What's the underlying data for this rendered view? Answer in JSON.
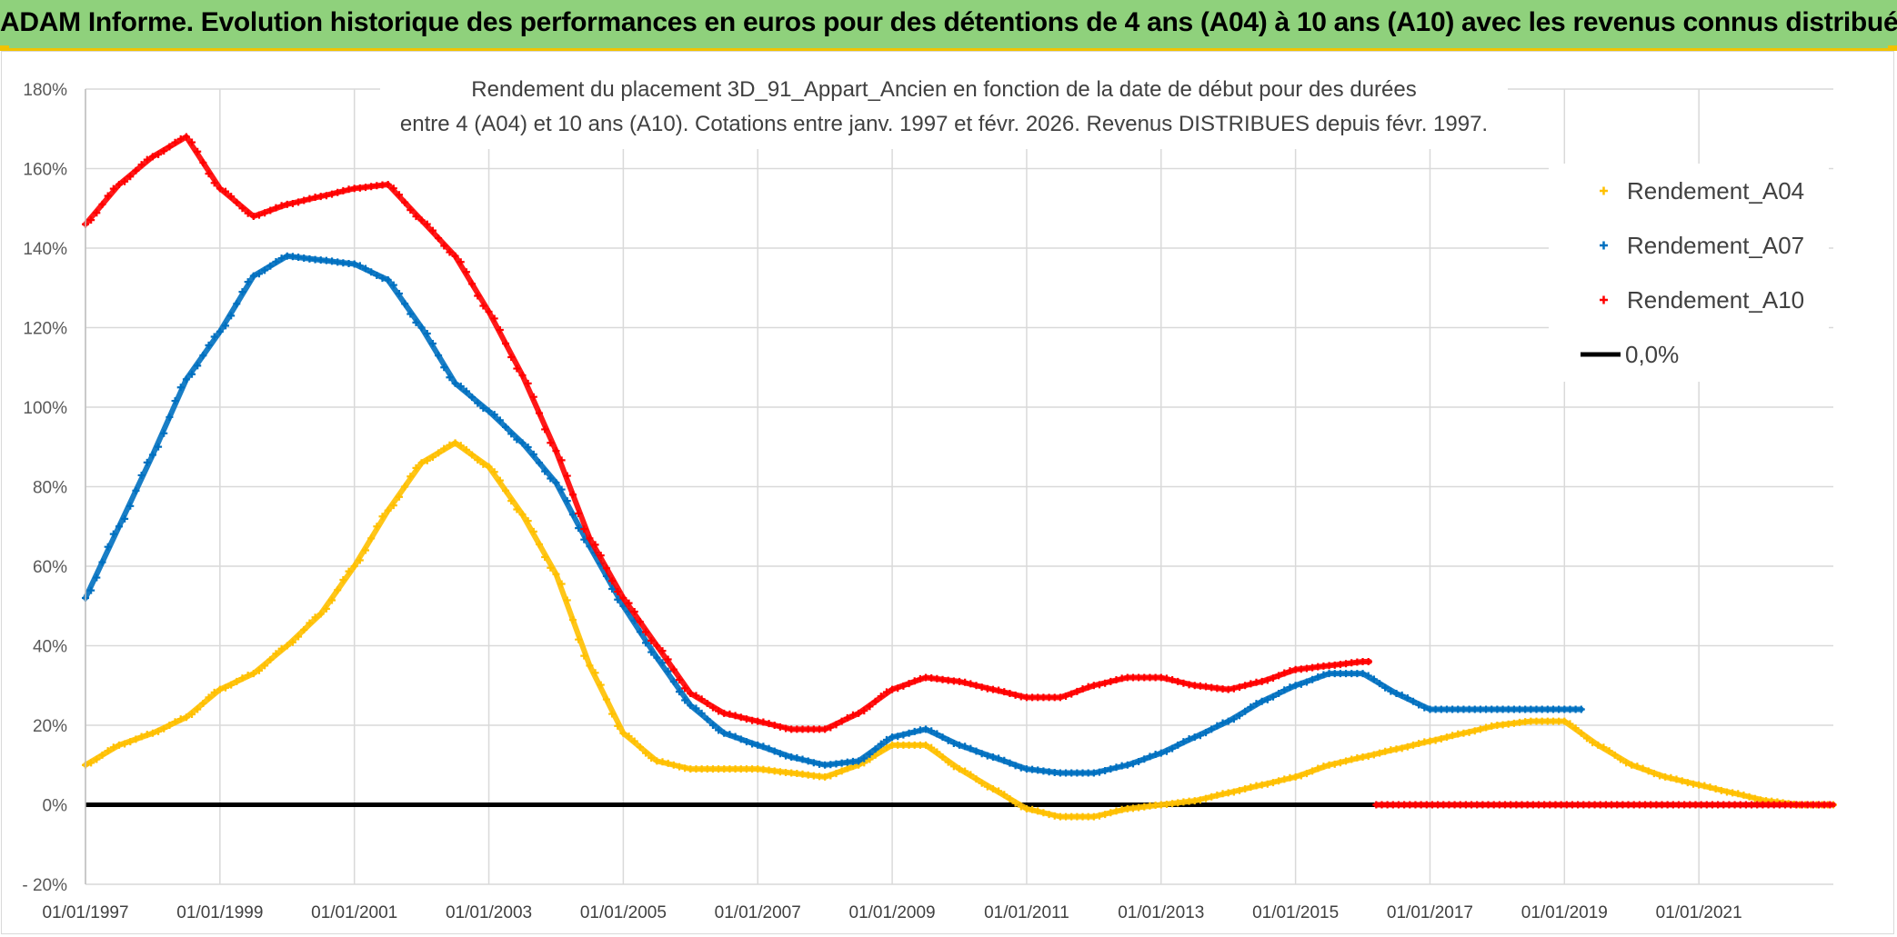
{
  "banner": {
    "title": "ADAM Informe. Evolution historique des performances en euros pour des détentions de 4 ans (A04) à 10 ans (A10) avec les revenus connus distribués"
  },
  "colors": {
    "banner_bg": "#8fd17c",
    "banner_border": "#f2c200",
    "A04": "#ffc000",
    "A07": "#0070c0",
    "A10": "#ff0000",
    "zero": "#000000",
    "grid": "#d9d9d9"
  },
  "chart_data": {
    "type": "scatter",
    "title_lines": [
      "Rendement du placement 3D_91_Appart_Ancien en fonction de la date de début pour des durées",
      "entre 4 (A04) et 10 ans (A10). Cotations entre janv. 1997 et févr. 2026. Revenus DISTRIBUES depuis févr. 1997."
    ],
    "xlabel": "",
    "ylabel": "",
    "x_unit": "year",
    "xlim": [
      1997.0,
      2023.0
    ],
    "ylim": [
      -20,
      180
    ],
    "y_ticks": [
      -20,
      0,
      20,
      40,
      60,
      80,
      100,
      120,
      140,
      160,
      180
    ],
    "y_tick_labels": [
      "- 20%",
      "0%",
      "20%",
      "40%",
      "60%",
      "80%",
      "100%",
      "120%",
      "140%",
      "160%",
      "180%"
    ],
    "x_ticks": [
      1997,
      1999,
      2001,
      2003,
      2005,
      2007,
      2009,
      2011,
      2013,
      2015,
      2017,
      2019,
      2021
    ],
    "x_tick_labels": [
      "01/01/1997",
      "01/01/1999",
      "01/01/2001",
      "01/01/2003",
      "01/01/2005",
      "01/01/2007",
      "01/01/2009",
      "01/01/2011",
      "01/01/2013",
      "01/01/2015",
      "01/01/2017",
      "01/01/2019",
      "01/01/2021"
    ],
    "grid": true,
    "legend_position": "right",
    "legend": [
      {
        "key": "A04",
        "label": "Rendement_A04",
        "marker": "+"
      },
      {
        "key": "A07",
        "label": "Rendement_A07",
        "marker": "+"
      },
      {
        "key": "A10",
        "label": "Rendement_A10",
        "marker": "+"
      },
      {
        "key": "zero",
        "label": "0,0%",
        "marker": "line"
      }
    ],
    "series": [
      {
        "name": "Rendement_A04",
        "key": "A04",
        "points": [
          [
            1997.0,
            10
          ],
          [
            1997.5,
            15
          ],
          [
            1998.0,
            18
          ],
          [
            1998.5,
            22
          ],
          [
            1999.0,
            29
          ],
          [
            1999.5,
            33
          ],
          [
            2000.0,
            40
          ],
          [
            2000.5,
            48
          ],
          [
            2001.0,
            60
          ],
          [
            2001.5,
            74
          ],
          [
            2002.0,
            86
          ],
          [
            2002.5,
            91
          ],
          [
            2003.0,
            85
          ],
          [
            2003.5,
            73
          ],
          [
            2004.0,
            58
          ],
          [
            2004.5,
            35
          ],
          [
            2005.0,
            18
          ],
          [
            2005.5,
            11
          ],
          [
            2006.0,
            9
          ],
          [
            2006.5,
            9
          ],
          [
            2007.0,
            9
          ],
          [
            2007.5,
            8
          ],
          [
            2008.0,
            7
          ],
          [
            2008.5,
            10
          ],
          [
            2009.0,
            15
          ],
          [
            2009.5,
            15
          ],
          [
            2010.0,
            9
          ],
          [
            2010.5,
            4
          ],
          [
            2011.0,
            -1
          ],
          [
            2011.5,
            -3
          ],
          [
            2012.0,
            -3
          ],
          [
            2012.5,
            -1
          ],
          [
            2013.0,
            0
          ],
          [
            2013.5,
            1
          ],
          [
            2014.0,
            3
          ],
          [
            2014.5,
            5
          ],
          [
            2015.0,
            7
          ],
          [
            2015.5,
            10
          ],
          [
            2016.0,
            12
          ],
          [
            2016.5,
            14
          ],
          [
            2017.0,
            16
          ],
          [
            2017.5,
            18
          ],
          [
            2018.0,
            20
          ],
          [
            2018.5,
            21
          ],
          [
            2019.0,
            21
          ],
          [
            2019.5,
            15
          ],
          [
            2020.0,
            10
          ],
          [
            2020.5,
            7
          ],
          [
            2021.0,
            5
          ],
          [
            2021.5,
            3
          ],
          [
            2022.0,
            1
          ],
          [
            2022.5,
            0
          ],
          [
            2023.0,
            0
          ]
        ]
      },
      {
        "name": "Rendement_A07",
        "key": "A07",
        "points": [
          [
            1997.0,
            52
          ],
          [
            1997.5,
            70
          ],
          [
            1998.0,
            88
          ],
          [
            1998.5,
            107
          ],
          [
            1999.0,
            119
          ],
          [
            1999.5,
            133
          ],
          [
            2000.0,
            138
          ],
          [
            2000.5,
            137
          ],
          [
            2001.0,
            136
          ],
          [
            2001.5,
            132
          ],
          [
            2002.0,
            120
          ],
          [
            2002.5,
            106
          ],
          [
            2003.0,
            99
          ],
          [
            2003.5,
            91
          ],
          [
            2004.0,
            81
          ],
          [
            2004.5,
            65
          ],
          [
            2005.0,
            50
          ],
          [
            2005.5,
            37
          ],
          [
            2006.0,
            25
          ],
          [
            2006.5,
            18
          ],
          [
            2007.0,
            15
          ],
          [
            2007.5,
            12
          ],
          [
            2008.0,
            10
          ],
          [
            2008.5,
            11
          ],
          [
            2009.0,
            17
          ],
          [
            2009.5,
            19
          ],
          [
            2010.0,
            15
          ],
          [
            2010.5,
            12
          ],
          [
            2011.0,
            9
          ],
          [
            2011.5,
            8
          ],
          [
            2012.0,
            8
          ],
          [
            2012.5,
            10
          ],
          [
            2013.0,
            13
          ],
          [
            2013.5,
            17
          ],
          [
            2014.0,
            21
          ],
          [
            2014.5,
            26
          ],
          [
            2015.0,
            30
          ],
          [
            2015.5,
            33
          ],
          [
            2016.0,
            33
          ],
          [
            2016.5,
            28
          ],
          [
            2017.0,
            24
          ],
          [
            2017.5,
            24
          ],
          [
            2018.0,
            24
          ],
          [
            2018.5,
            24
          ],
          [
            2019.0,
            24
          ],
          [
            2019.25,
            24
          ]
        ]
      },
      {
        "name": "Rendement_A10",
        "key": "A10",
        "points": [
          [
            1997.0,
            146
          ],
          [
            1997.5,
            156
          ],
          [
            1998.0,
            163
          ],
          [
            1998.5,
            168
          ],
          [
            1999.0,
            155
          ],
          [
            1999.5,
            148
          ],
          [
            2000.0,
            151
          ],
          [
            2000.5,
            153
          ],
          [
            2001.0,
            155
          ],
          [
            2001.5,
            156
          ],
          [
            2002.0,
            147
          ],
          [
            2002.5,
            138
          ],
          [
            2003.0,
            124
          ],
          [
            2003.5,
            108
          ],
          [
            2004.0,
            89
          ],
          [
            2004.5,
            67
          ],
          [
            2005.0,
            52
          ],
          [
            2005.5,
            40
          ],
          [
            2006.0,
            28
          ],
          [
            2006.5,
            23
          ],
          [
            2007.0,
            21
          ],
          [
            2007.5,
            19
          ],
          [
            2008.0,
            19
          ],
          [
            2008.5,
            23
          ],
          [
            2009.0,
            29
          ],
          [
            2009.5,
            32
          ],
          [
            2010.0,
            31
          ],
          [
            2010.5,
            29
          ],
          [
            2011.0,
            27
          ],
          [
            2011.5,
            27
          ],
          [
            2012.0,
            30
          ],
          [
            2012.5,
            32
          ],
          [
            2013.0,
            32
          ],
          [
            2013.5,
            30
          ],
          [
            2014.0,
            29
          ],
          [
            2014.5,
            31
          ],
          [
            2015.0,
            34
          ],
          [
            2015.5,
            35
          ],
          [
            2016.0,
            36
          ],
          [
            2016.1,
            36
          ]
        ]
      },
      {
        "name": "Rendement_A10 (0%)",
        "key": "A10",
        "points": [
          [
            2016.2,
            0
          ],
          [
            2023.0,
            0
          ]
        ]
      }
    ],
    "reference_line": {
      "label": "0,0%",
      "y": 0,
      "x_range": [
        1997.0,
        2023.0
      ]
    }
  }
}
